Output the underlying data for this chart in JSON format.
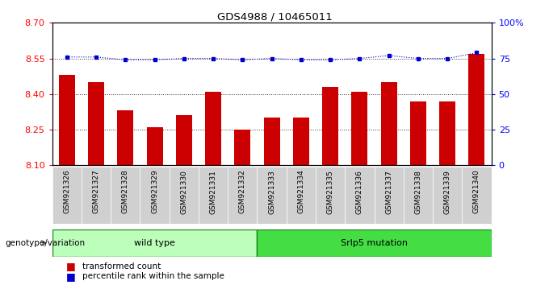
{
  "title": "GDS4988 / 10465011",
  "samples": [
    "GSM921326",
    "GSM921327",
    "GSM921328",
    "GSM921329",
    "GSM921330",
    "GSM921331",
    "GSM921332",
    "GSM921333",
    "GSM921334",
    "GSM921335",
    "GSM921336",
    "GSM921337",
    "GSM921338",
    "GSM921339",
    "GSM921340"
  ],
  "bar_values": [
    8.48,
    8.45,
    8.33,
    8.26,
    8.31,
    8.41,
    8.25,
    8.3,
    8.3,
    8.43,
    8.41,
    8.45,
    8.37,
    8.37,
    8.57
  ],
  "percentile_values": [
    76,
    76,
    74,
    74,
    75,
    75,
    74,
    75,
    74,
    74,
    75,
    77,
    75,
    75,
    79
  ],
  "ylim_left": [
    8.1,
    8.7
  ],
  "ylim_right": [
    0,
    100
  ],
  "yticks_left": [
    8.1,
    8.25,
    8.4,
    8.55,
    8.7
  ],
  "yticks_right": [
    0,
    25,
    50,
    75,
    100
  ],
  "bar_color": "#cc0000",
  "percentile_color": "#0000cc",
  "dotted_line_color": "#333333",
  "group1": {
    "label": "wild type",
    "indices": [
      0,
      1,
      2,
      3,
      4,
      5,
      6
    ],
    "color": "#bbffbb"
  },
  "group2": {
    "label": "Srlp5 mutation",
    "indices": [
      7,
      8,
      9,
      10,
      11,
      12,
      13,
      14
    ],
    "color": "#44dd44"
  },
  "genotype_label": "genotype/variation",
  "legend_bar": "transformed count",
  "legend_pct": "percentile rank within the sample",
  "xticklabel_bg": "#cccccc",
  "plot_bg": "#ffffff"
}
